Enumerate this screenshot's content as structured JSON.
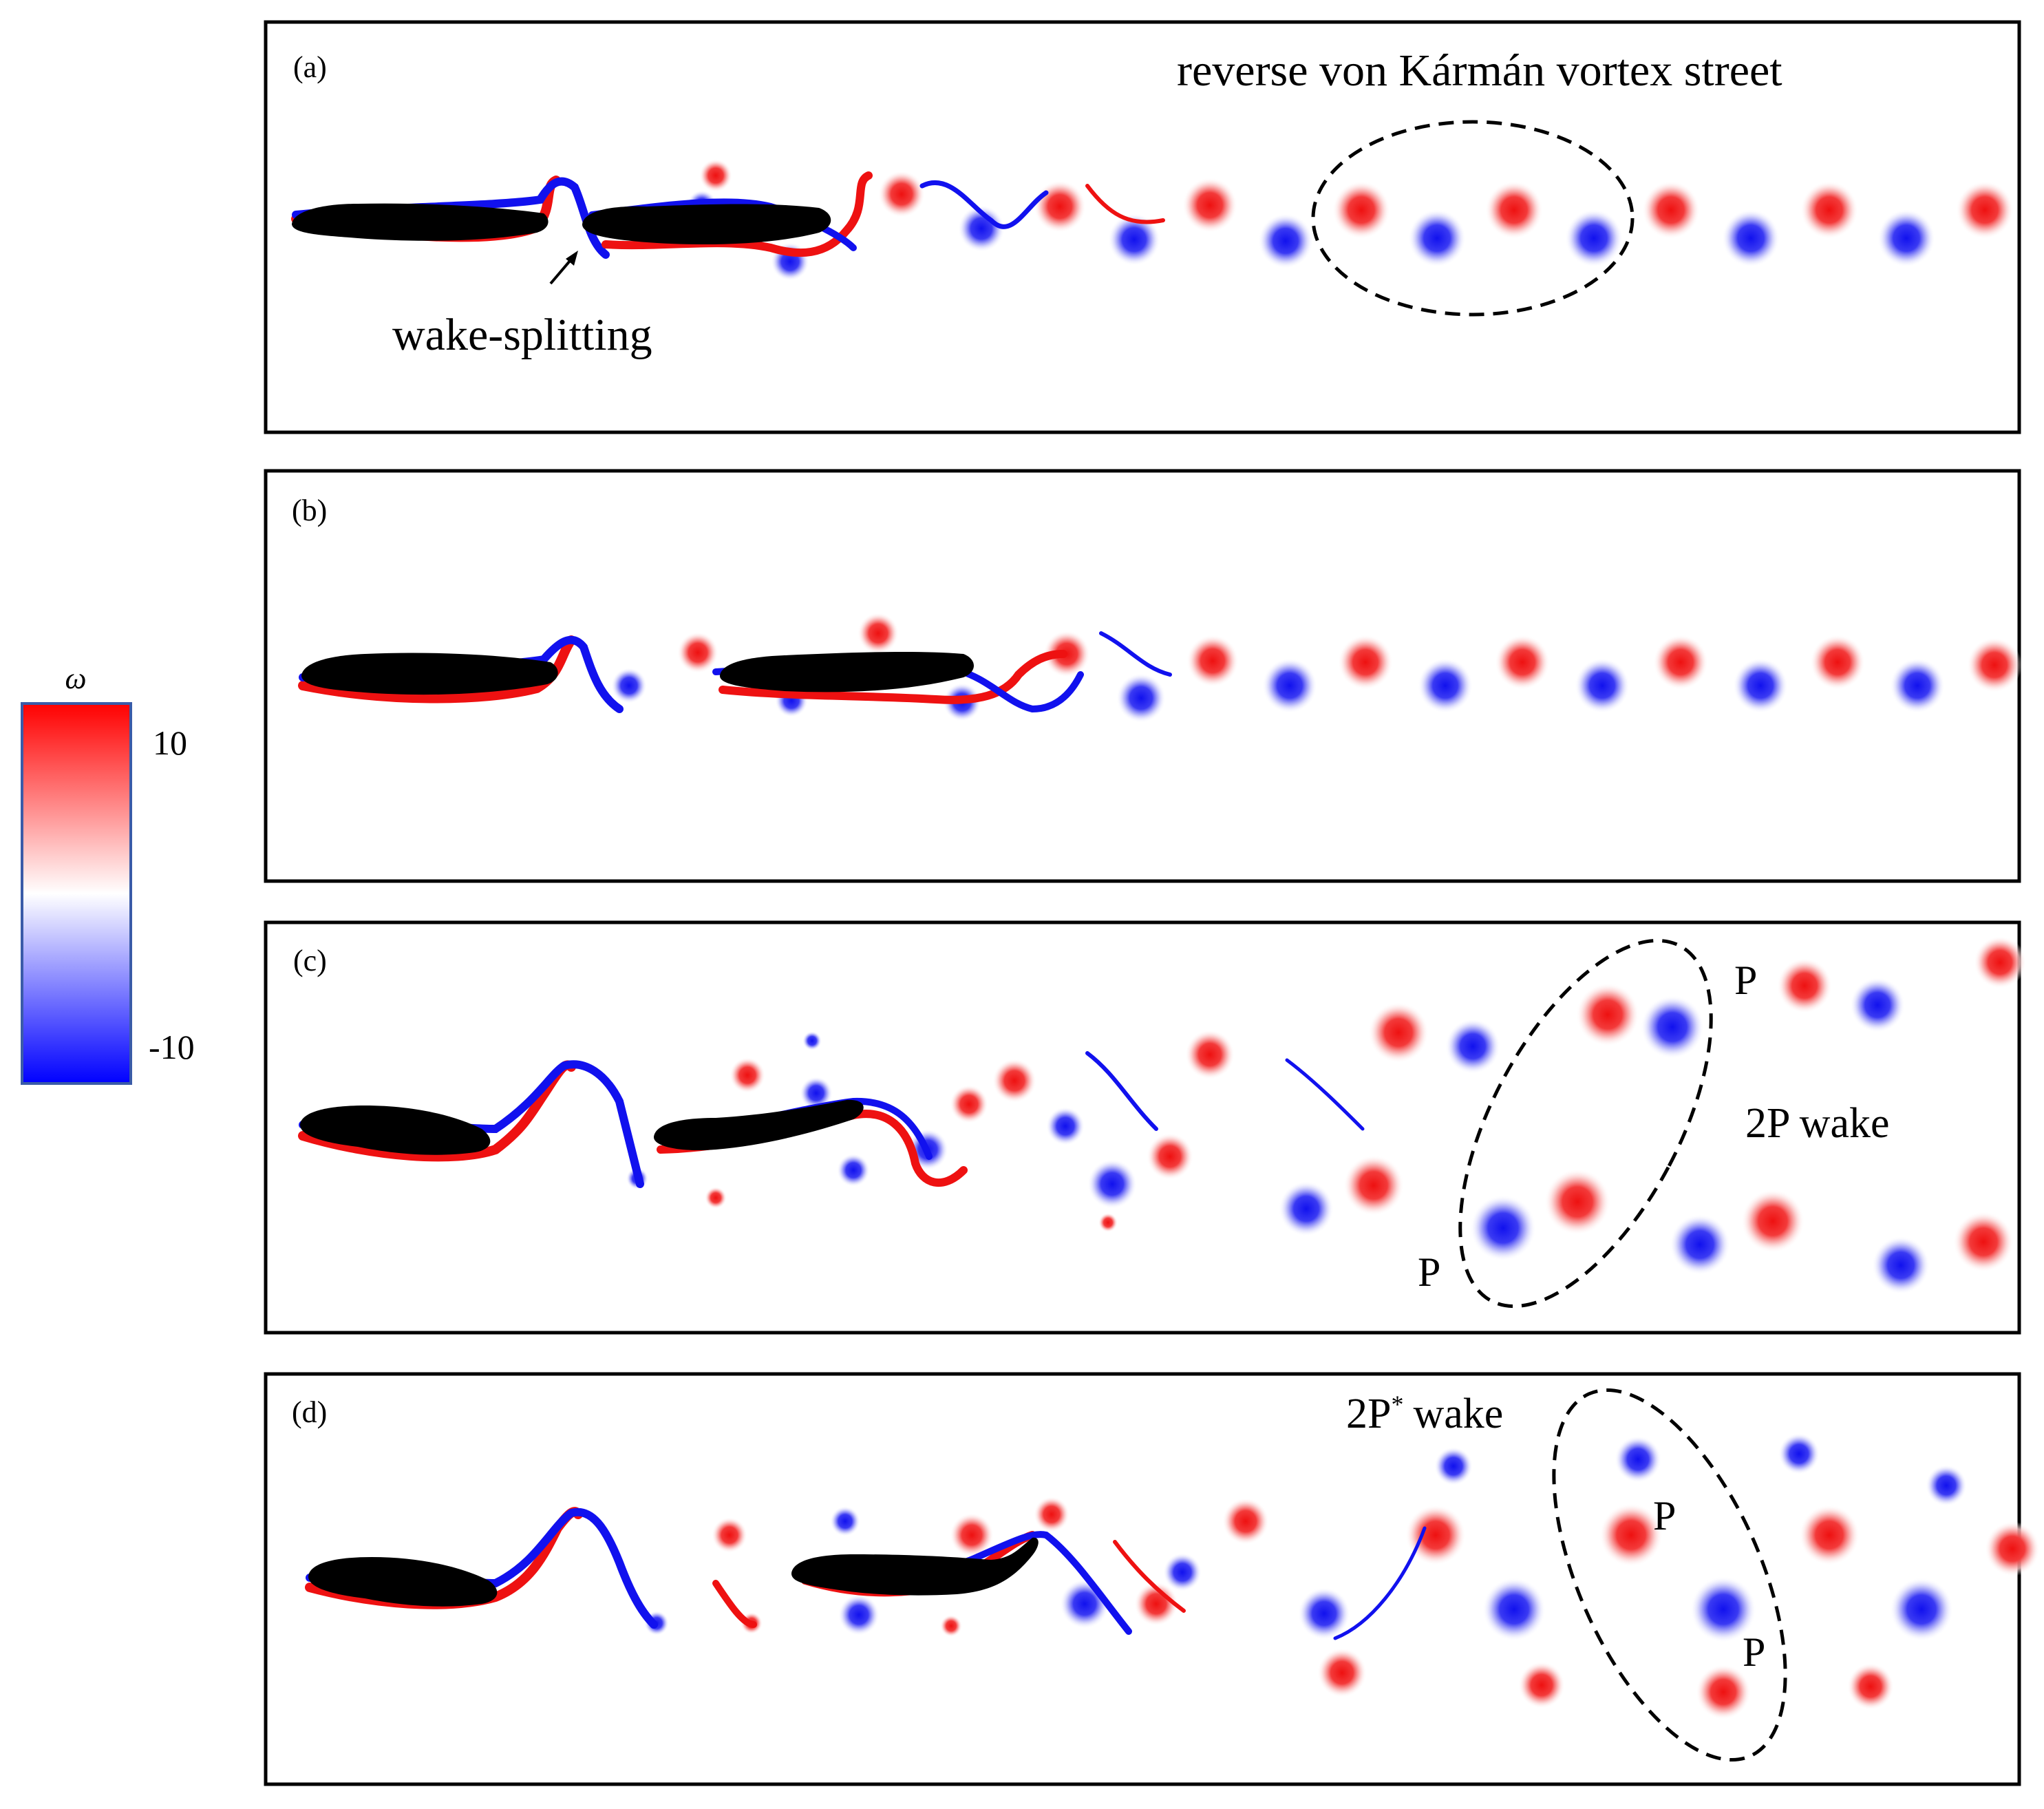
{
  "colorbar": {
    "symbol": "ω",
    "max_label": "10",
    "min_label": "-10",
    "max_value": 10,
    "min_value": -10,
    "color_high": "#ff0000",
    "color_mid": "#ffffff",
    "color_low": "#0000ff"
  },
  "colors": {
    "positive": "#ee1111",
    "negative": "#1111ee",
    "body": "#000000",
    "frame": "#000000"
  },
  "panels": [
    {
      "label": "(a)",
      "annotations": [
        "reverse von Kármán vortex street",
        "wake-splitting"
      ]
    },
    {
      "label": "(b)",
      "annotations": []
    },
    {
      "label": "(c)",
      "annotations": [
        "P",
        "P",
        "2P wake"
      ]
    },
    {
      "label": "(d)",
      "annotations": [
        "2P",
        "*",
        "wake",
        "P",
        "P"
      ]
    }
  ]
}
